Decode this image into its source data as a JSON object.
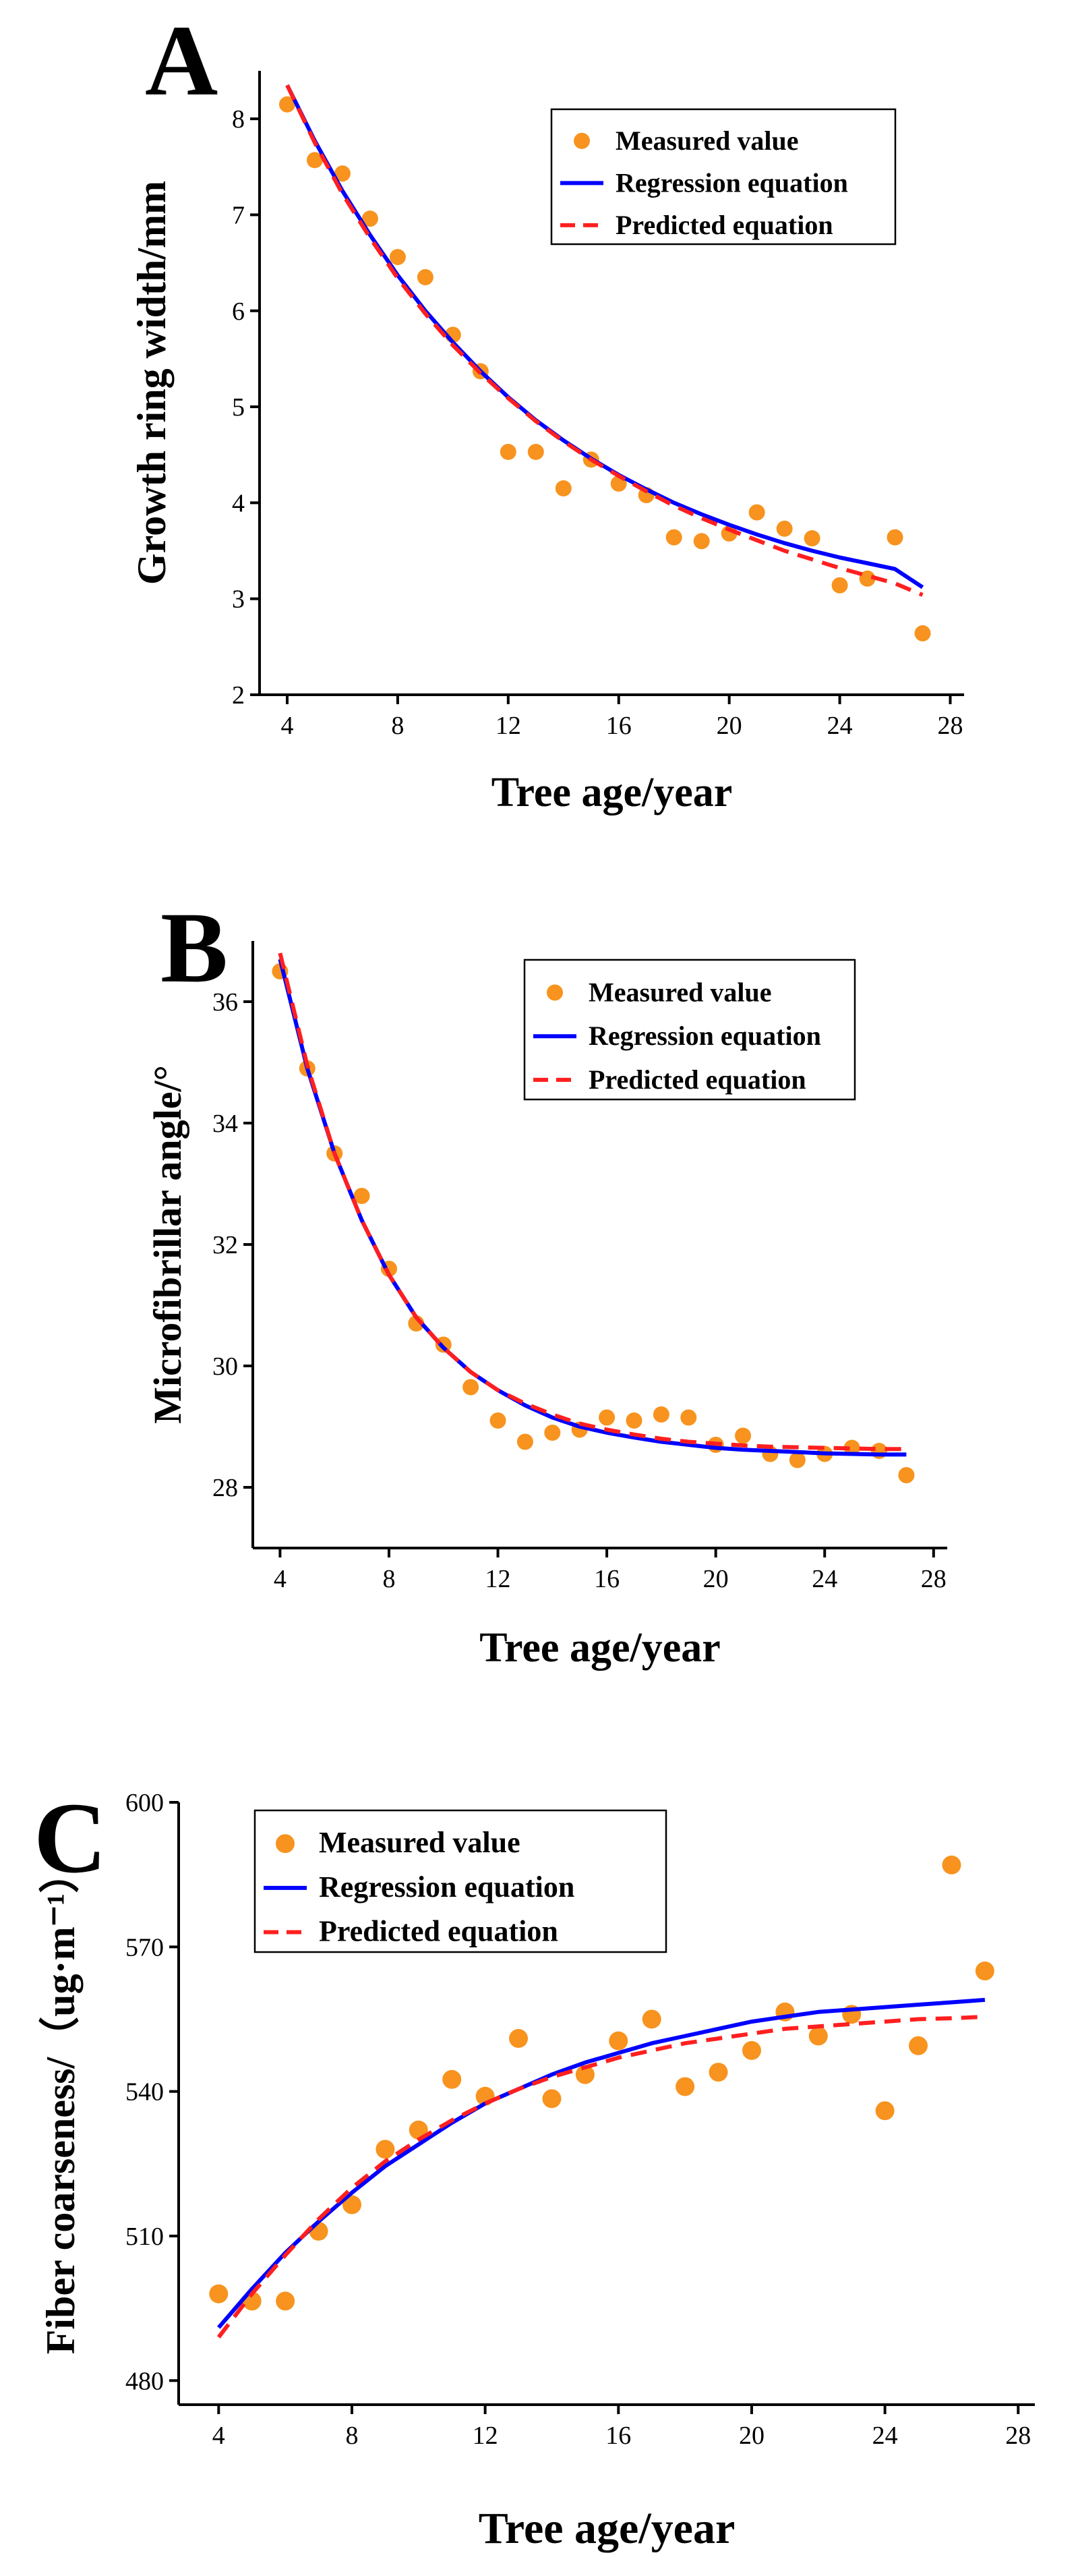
{
  "colors": {
    "measured": "#F7931E",
    "regression": "#0000FF",
    "predicted": "#FF1F1F",
    "axis": "#000000"
  },
  "chart_data": [
    {
      "type": "scatter",
      "panel_label": "A",
      "xlabel": "Tree age/year",
      "ylabel": "Growth ring width/mm",
      "xlim": [
        3,
        28.5
      ],
      "ylim": [
        2,
        8.5
      ],
      "xticks": [
        4,
        8,
        12,
        16,
        20,
        24,
        28
      ],
      "yticks": [
        2,
        3,
        4,
        5,
        6,
        7,
        8
      ],
      "legend": {
        "placement": "top-right",
        "entries": [
          "Measured value",
          "Regression equation",
          "Predicted equation"
        ]
      },
      "series": [
        {
          "name": "Measured value",
          "kind": "points",
          "x": [
            4,
            5,
            6,
            7,
            8,
            9,
            10,
            11,
            12,
            13,
            14,
            15,
            16,
            17,
            18,
            19,
            20,
            21,
            22,
            23,
            24,
            25,
            26,
            27
          ],
          "y": [
            8.15,
            7.57,
            7.43,
            6.96,
            6.56,
            6.35,
            5.75,
            5.37,
            4.53,
            4.53,
            4.15,
            4.45,
            4.2,
            4.08,
            3.64,
            3.6,
            3.68,
            3.9,
            3.73,
            3.63,
            3.14,
            3.21,
            3.64,
            2.64
          ]
        },
        {
          "name": "Regression equation",
          "kind": "line",
          "x": [
            4,
            5,
            6,
            7,
            8,
            9,
            10,
            11,
            12,
            13,
            14,
            15,
            16,
            17,
            18,
            19,
            20,
            21,
            22,
            23,
            24,
            25,
            26,
            27
          ],
          "y": [
            8.35,
            7.77,
            7.25,
            6.79,
            6.37,
            6.0,
            5.67,
            5.37,
            5.1,
            4.86,
            4.65,
            4.46,
            4.29,
            4.14,
            4.0,
            3.88,
            3.77,
            3.67,
            3.58,
            3.5,
            3.43,
            3.37,
            3.31,
            3.12
          ]
        },
        {
          "name": "Predicted equation",
          "kind": "dashed-line",
          "x": [
            4,
            5,
            6,
            7,
            8,
            9,
            10,
            11,
            12,
            13,
            14,
            15,
            16,
            17,
            18,
            19,
            20,
            21,
            22,
            23,
            24,
            25,
            26,
            27
          ],
          "y": [
            8.35,
            7.75,
            7.22,
            6.76,
            6.34,
            5.97,
            5.64,
            5.35,
            5.09,
            4.85,
            4.64,
            4.45,
            4.28,
            4.12,
            3.97,
            3.84,
            3.72,
            3.61,
            3.5,
            3.41,
            3.32,
            3.24,
            3.16,
            3.04
          ]
        }
      ]
    },
    {
      "type": "scatter",
      "panel_label": "B",
      "xlabel": "Tree age/year",
      "ylabel": "Microfibrillar angle/°",
      "xlim": [
        3,
        28.5
      ],
      "ylim": [
        27,
        37
      ],
      "xticks": [
        4,
        8,
        12,
        16,
        20,
        24,
        28
      ],
      "yticks": [
        28,
        30,
        32,
        34,
        36
      ],
      "legend": {
        "placement": "top-right",
        "entries": [
          "Measured value",
          "Regression equation",
          "Predicted equation"
        ]
      },
      "series": [
        {
          "name": "Measured value",
          "kind": "points",
          "x": [
            4,
            5,
            6,
            7,
            8,
            9,
            10,
            11,
            12,
            13,
            14,
            15,
            16,
            17,
            18,
            19,
            20,
            21,
            22,
            23,
            24,
            25,
            26,
            27
          ],
          "y": [
            36.5,
            34.9,
            33.5,
            32.8,
            31.6,
            30.7,
            30.35,
            29.65,
            29.1,
            28.75,
            28.9,
            28.95,
            29.15,
            29.1,
            29.2,
            29.15,
            28.7,
            28.85,
            28.55,
            28.45,
            28.55,
            28.65,
            28.6,
            28.2
          ]
        },
        {
          "name": "Regression equation",
          "kind": "line",
          "x": [
            4,
            5,
            6,
            7,
            8,
            9,
            10,
            11,
            12,
            13,
            14,
            15,
            16,
            17,
            18,
            19,
            20,
            21,
            22,
            23,
            24,
            25,
            26,
            27
          ],
          "y": [
            36.7,
            34.9,
            33.5,
            32.4,
            31.5,
            30.8,
            30.3,
            29.9,
            29.6,
            29.35,
            29.15,
            29.0,
            28.9,
            28.82,
            28.75,
            28.7,
            28.65,
            28.62,
            28.6,
            28.58,
            28.56,
            28.55,
            28.54,
            28.54
          ]
        },
        {
          "name": "Predicted equation",
          "kind": "dashed-line",
          "x": [
            4,
            5,
            6,
            7,
            8,
            9,
            10,
            11,
            12,
            13,
            14,
            15,
            16,
            17,
            18,
            19,
            20,
            21,
            22,
            23,
            24,
            25,
            26,
            27
          ],
          "y": [
            36.8,
            34.95,
            33.5,
            32.4,
            31.5,
            30.8,
            30.3,
            29.9,
            29.6,
            29.38,
            29.2,
            29.05,
            28.95,
            28.87,
            28.8,
            28.75,
            28.72,
            28.69,
            28.67,
            28.66,
            28.65,
            28.64,
            28.63,
            28.63
          ]
        }
      ]
    },
    {
      "type": "scatter",
      "panel_label": "C",
      "xlabel": "Tree age/year",
      "ylabel": "Fiber coarseness/（ug·m⁻¹）",
      "xlim": [
        2.8,
        28.5
      ],
      "ylim": [
        475,
        600
      ],
      "xticks": [
        4,
        8,
        12,
        16,
        20,
        24,
        28
      ],
      "yticks": [
        480,
        510,
        540,
        570,
        600
      ],
      "legend": {
        "placement": "top-left",
        "entries": [
          "Measured value",
          "Regression equation",
          "Predicted equation"
        ]
      },
      "series": [
        {
          "name": "Measured value",
          "kind": "points",
          "x": [
            4,
            5,
            6,
            7,
            8,
            9,
            10,
            11,
            12,
            13,
            14,
            15,
            16,
            17,
            18,
            19,
            20,
            21,
            22,
            23,
            24,
            25,
            26,
            27
          ],
          "y": [
            498,
            496.5,
            496.5,
            511,
            516.5,
            528,
            532,
            542.5,
            539,
            551,
            538.5,
            543.5,
            550.5,
            555,
            541,
            544,
            548.5,
            556.5,
            551.5,
            556,
            536,
            549.5,
            587,
            565
          ]
        },
        {
          "name": "Regression equation",
          "kind": "line",
          "x": [
            4,
            5,
            6,
            7,
            8,
            9,
            10,
            11,
            12,
            13,
            14,
            15,
            16,
            17,
            18,
            19,
            20,
            21,
            22,
            23,
            24,
            25,
            26,
            27
          ],
          "y": [
            491,
            499,
            506.5,
            513,
            519,
            524.5,
            529,
            533.5,
            537.5,
            540.5,
            543.5,
            546,
            548,
            550,
            551.5,
            553,
            554.5,
            555.5,
            556.5,
            557,
            557.5,
            558,
            558.5,
            559
          ]
        },
        {
          "name": "Predicted equation",
          "kind": "dashed-line",
          "x": [
            4,
            5,
            6,
            7,
            8,
            9,
            10,
            11,
            12,
            13,
            14,
            15,
            16,
            17,
            18,
            19,
            20,
            21,
            22,
            23,
            24,
            25,
            26,
            27
          ],
          "y": [
            489,
            498,
            506,
            513.5,
            520,
            525.5,
            530,
            534,
            537.5,
            540.5,
            543,
            545,
            547,
            548.5,
            550,
            551,
            552,
            553,
            553.5,
            554,
            554.5,
            555,
            555.2,
            555.5
          ]
        }
      ]
    }
  ]
}
